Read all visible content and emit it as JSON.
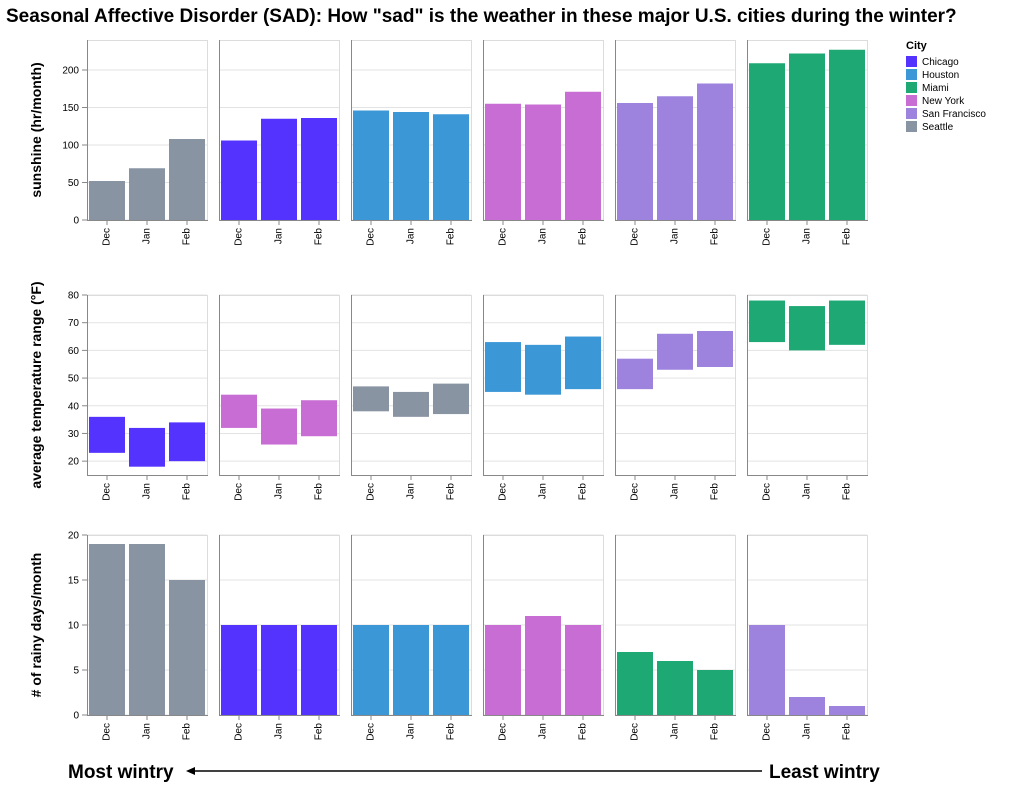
{
  "chart_data": {
    "type": "bar",
    "title": "Seasonal Affective Disorder (SAD): How \"sad\" is the weather in these major U.S. cities during the winter?",
    "months": [
      "Dec",
      "Jan",
      "Feb"
    ],
    "legend": {
      "title": "City",
      "placement": "top-right",
      "items": [
        {
          "name": "Chicago",
          "color": "#5533ff"
        },
        {
          "name": "Houston",
          "color": "#3c97d6"
        },
        {
          "name": "Miami",
          "color": "#1ea874"
        },
        {
          "name": "New York",
          "color": "#c76dd3"
        },
        {
          "name": "San Francisco",
          "color": "#9d83dd"
        },
        {
          "name": "Seattle",
          "color": "#8994a2"
        }
      ]
    },
    "rows": [
      {
        "ylabel": "sunshine (hr/month)",
        "ylim": [
          0,
          240
        ],
        "yticks": [
          0,
          50,
          100,
          150,
          200
        ],
        "grid": true,
        "panels": [
          {
            "city": "Seattle",
            "values": [
              52,
              69,
              108
            ]
          },
          {
            "city": "Chicago",
            "values": [
              106,
              135,
              136
            ]
          },
          {
            "city": "Houston",
            "values": [
              146,
              144,
              141
            ]
          },
          {
            "city": "New York",
            "values": [
              155,
              154,
              171
            ]
          },
          {
            "city": "San Francisco",
            "values": [
              156,
              165,
              182
            ]
          },
          {
            "city": "Miami",
            "values": [
              209,
              222,
              227
            ]
          }
        ]
      },
      {
        "ylabel": "average temperature range (°F)",
        "ylim": [
          15,
          80
        ],
        "yticks": [
          20,
          30,
          40,
          50,
          60,
          70,
          80
        ],
        "grid": true,
        "panels": [
          {
            "city": "Chicago",
            "low": [
              23,
              18,
              20
            ],
            "high": [
              36,
              32,
              34
            ]
          },
          {
            "city": "New York",
            "low": [
              32,
              26,
              29
            ],
            "high": [
              44,
              39,
              42
            ]
          },
          {
            "city": "Seattle",
            "low": [
              38,
              36,
              37
            ],
            "high": [
              47,
              45,
              48
            ]
          },
          {
            "city": "Houston",
            "low": [
              45,
              44,
              46
            ],
            "high": [
              63,
              62,
              65
            ]
          },
          {
            "city": "San Francisco",
            "low": [
              46,
              53,
              54
            ],
            "high": [
              57,
              66,
              67
            ]
          },
          {
            "city": "Miami",
            "low": [
              63,
              60,
              62
            ],
            "high": [
              78,
              76,
              78
            ]
          }
        ]
      },
      {
        "ylabel": "# of rainy days/month",
        "ylim": [
          0,
          20
        ],
        "yticks": [
          0,
          5,
          10,
          15,
          20
        ],
        "grid": true,
        "panels": [
          {
            "city": "Seattle",
            "values": [
              19,
              19,
              15
            ]
          },
          {
            "city": "Chicago",
            "values": [
              10,
              10,
              10
            ]
          },
          {
            "city": "Houston",
            "values": [
              10,
              10,
              10
            ]
          },
          {
            "city": "New York",
            "values": [
              10,
              11,
              10
            ]
          },
          {
            "city": "Miami",
            "values": [
              7,
              6,
              5
            ]
          },
          {
            "city": "San Francisco",
            "values": [
              10,
              2,
              1
            ]
          }
        ]
      }
    ],
    "footer": {
      "left": "Most wintry",
      "right": "Least wintry"
    }
  }
}
